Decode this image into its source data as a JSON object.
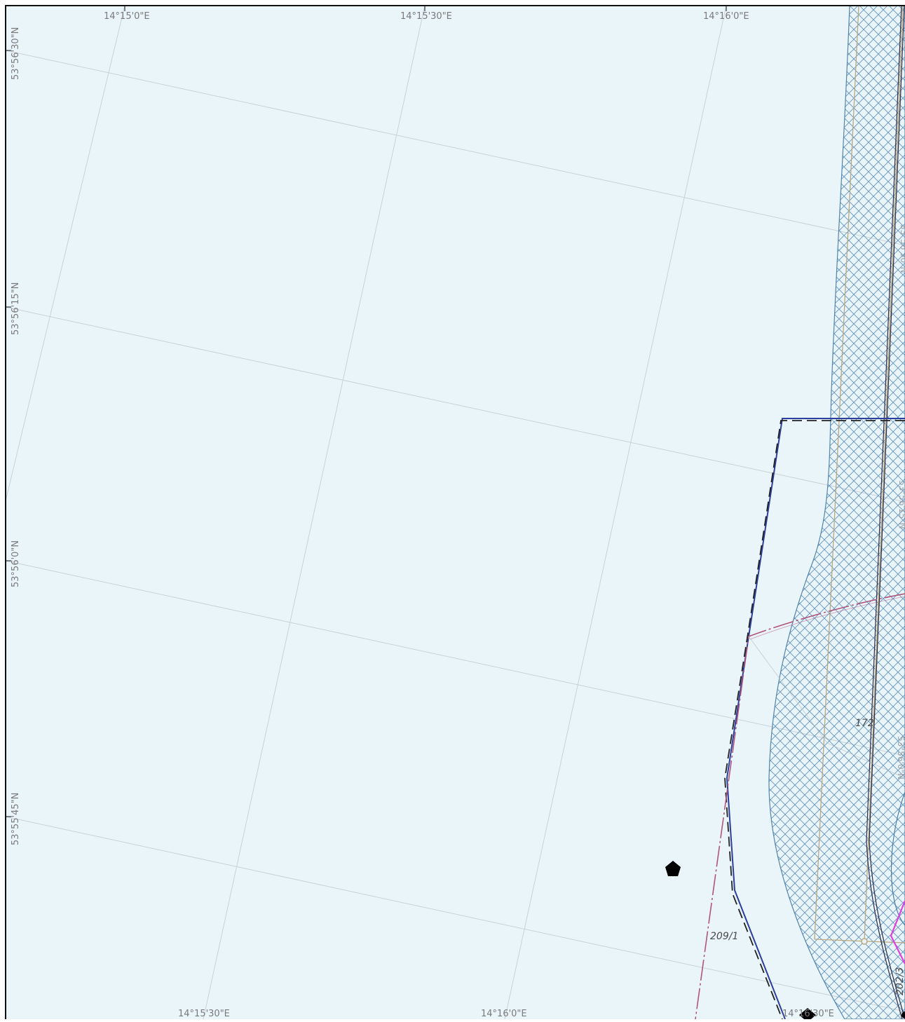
{
  "map": {
    "background_color": "#eaf5fa",
    "grid_color": "#c9d2d6",
    "frame_color": "#111111",
    "top_labels": [
      "14°15'0\"E",
      "14°15'30\"E",
      "14°16'0\"E"
    ],
    "bottom_labels": [
      "14°15'30\"E",
      "14°16'0\"E",
      "14°16'30\"E"
    ],
    "left_labels": [
      "53°56'30\"N",
      "53°56'15\"N",
      "53°56'0\"N",
      "53°55'45\"N"
    ],
    "right_inner_labels": [
      "53°56'30\"N",
      "53°56'15\"N",
      "53°56'0\"N"
    ],
    "depth_labels": [
      "172",
      "209/1",
      "202/3"
    ],
    "colors": {
      "hatch": "#5b8fb8",
      "boundary_blue": "#2c3e9e",
      "boundary_dash": "#222222",
      "route_magenta": "#b0557a",
      "tan_line": "#b9a780",
      "fairway_edge": "#4a7fa8",
      "magenta_bright": "#e040e0"
    },
    "symbols": [
      "pentagon-buoy-icon",
      "diamond-buoy-icon",
      "circle-marker-icon"
    ]
  }
}
